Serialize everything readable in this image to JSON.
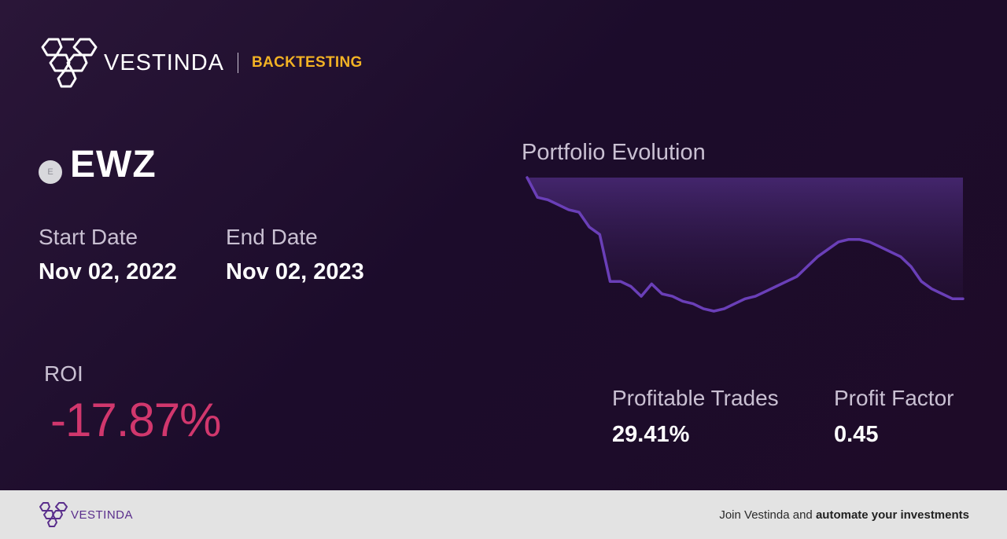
{
  "brand": {
    "name": "VESTINDA",
    "section": "BACKTESTING",
    "logo_icon": "vestinda-hexagon-logo-icon"
  },
  "asset": {
    "icon_letter": "E",
    "ticker": "EWZ"
  },
  "dates": {
    "start_label": "Start Date",
    "start_value": "Nov 02, 2022",
    "end_label": "End Date",
    "end_value": "Nov 02, 2023"
  },
  "roi": {
    "label": "ROI",
    "value": "-17.87%"
  },
  "stats": {
    "profitable_trades_label": "Profitable Trades",
    "profitable_trades_value": "29.41%",
    "profit_factor_label": "Profit Factor",
    "profit_factor_value": "0.45"
  },
  "colors": {
    "accent": "#f2b224",
    "negative": "#d1376d",
    "line": "#6a3fb8"
  },
  "chart_data": {
    "type": "area",
    "title": "Portfolio Evolution",
    "xlabel": "",
    "ylabel": "",
    "grid": false,
    "legend": "none",
    "series": [
      {
        "values": [
          100,
          92,
          91,
          89,
          87,
          86,
          80,
          77,
          58,
          58,
          56,
          52,
          57,
          53,
          52,
          50,
          49,
          47,
          46,
          47,
          49,
          51,
          52,
          54,
          56,
          58,
          60,
          64,
          68,
          71,
          74,
          75,
          75,
          74,
          72,
          70,
          68,
          64,
          58,
          55,
          53,
          51,
          51
        ]
      }
    ]
  },
  "footer": {
    "brand_name": "VESTINDA",
    "cta_prefix": "Join Vestinda and ",
    "cta_bold": "automate your investments"
  }
}
